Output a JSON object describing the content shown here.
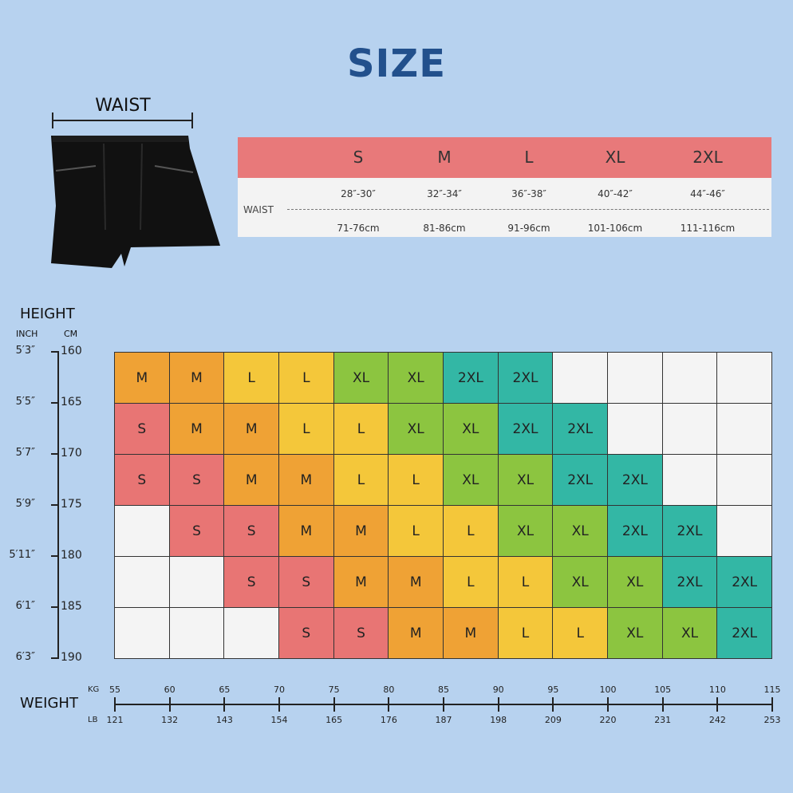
{
  "header": {
    "title": "SIZE"
  },
  "illustration": {
    "waist_label": "WAIST"
  },
  "waist_table": {
    "sizes": [
      "S",
      "M",
      "L",
      "XL",
      "2XL"
    ],
    "row_label": "WAIST",
    "inches": [
      "28″-30″",
      "32″-34″",
      "36″-38″",
      "40″-42″",
      "44″-46″"
    ],
    "cm": [
      "71-76cm",
      "81-86cm",
      "91-96cm",
      "101-106cm",
      "111-116cm"
    ]
  },
  "colors": {
    "S": "#e87574",
    "M": "#efa235",
    "L": "#f4c73a",
    "XL": "#8cc540",
    "2XL": "#33b7a5",
    "empty": "#f4f4f4",
    "header": "#e8797a",
    "title": "#22508c",
    "background": "#b7d2ef"
  },
  "chart_data": {
    "type": "heatmap",
    "title": "SIZE",
    "ylabel": "HEIGHT",
    "ylabel_units": [
      "INCH",
      "CM"
    ],
    "xlabel": "WEIGHT",
    "xlabel_units": [
      "KG",
      "LB"
    ],
    "y_ticks_inch": [
      "5′3″",
      "5′5″",
      "5′7″",
      "5′9″",
      "5′11″",
      "6′1″",
      "6′3″"
    ],
    "y_ticks_cm": [
      "160",
      "165",
      "170",
      "175",
      "180",
      "185",
      "190"
    ],
    "x_ticks_kg": [
      "55",
      "60",
      "65",
      "70",
      "75",
      "80",
      "85",
      "90",
      "95",
      "100",
      "105",
      "110",
      "115"
    ],
    "x_ticks_lb": [
      "121",
      "132",
      "143",
      "154",
      "165",
      "176",
      "187",
      "198",
      "209",
      "220",
      "231",
      "242",
      "253"
    ],
    "rows": [
      [
        "M",
        "M",
        "L",
        "L",
        "XL",
        "XL",
        "2XL",
        "2XL",
        "",
        "",
        "",
        ""
      ],
      [
        "S",
        "M",
        "M",
        "L",
        "L",
        "XL",
        "XL",
        "2XL",
        "2XL",
        "",
        "",
        ""
      ],
      [
        "S",
        "S",
        "M",
        "M",
        "L",
        "L",
        "XL",
        "XL",
        "2XL",
        "2XL",
        "",
        ""
      ],
      [
        "",
        "S",
        "S",
        "M",
        "M",
        "L",
        "L",
        "XL",
        "XL",
        "2XL",
        "2XL",
        ""
      ],
      [
        "",
        "",
        "S",
        "S",
        "M",
        "M",
        "L",
        "L",
        "XL",
        "XL",
        "2XL",
        "2XL"
      ],
      [
        "",
        "",
        "",
        "S",
        "S",
        "M",
        "M",
        "L",
        "L",
        "XL",
        "XL",
        "2XL"
      ]
    ]
  }
}
